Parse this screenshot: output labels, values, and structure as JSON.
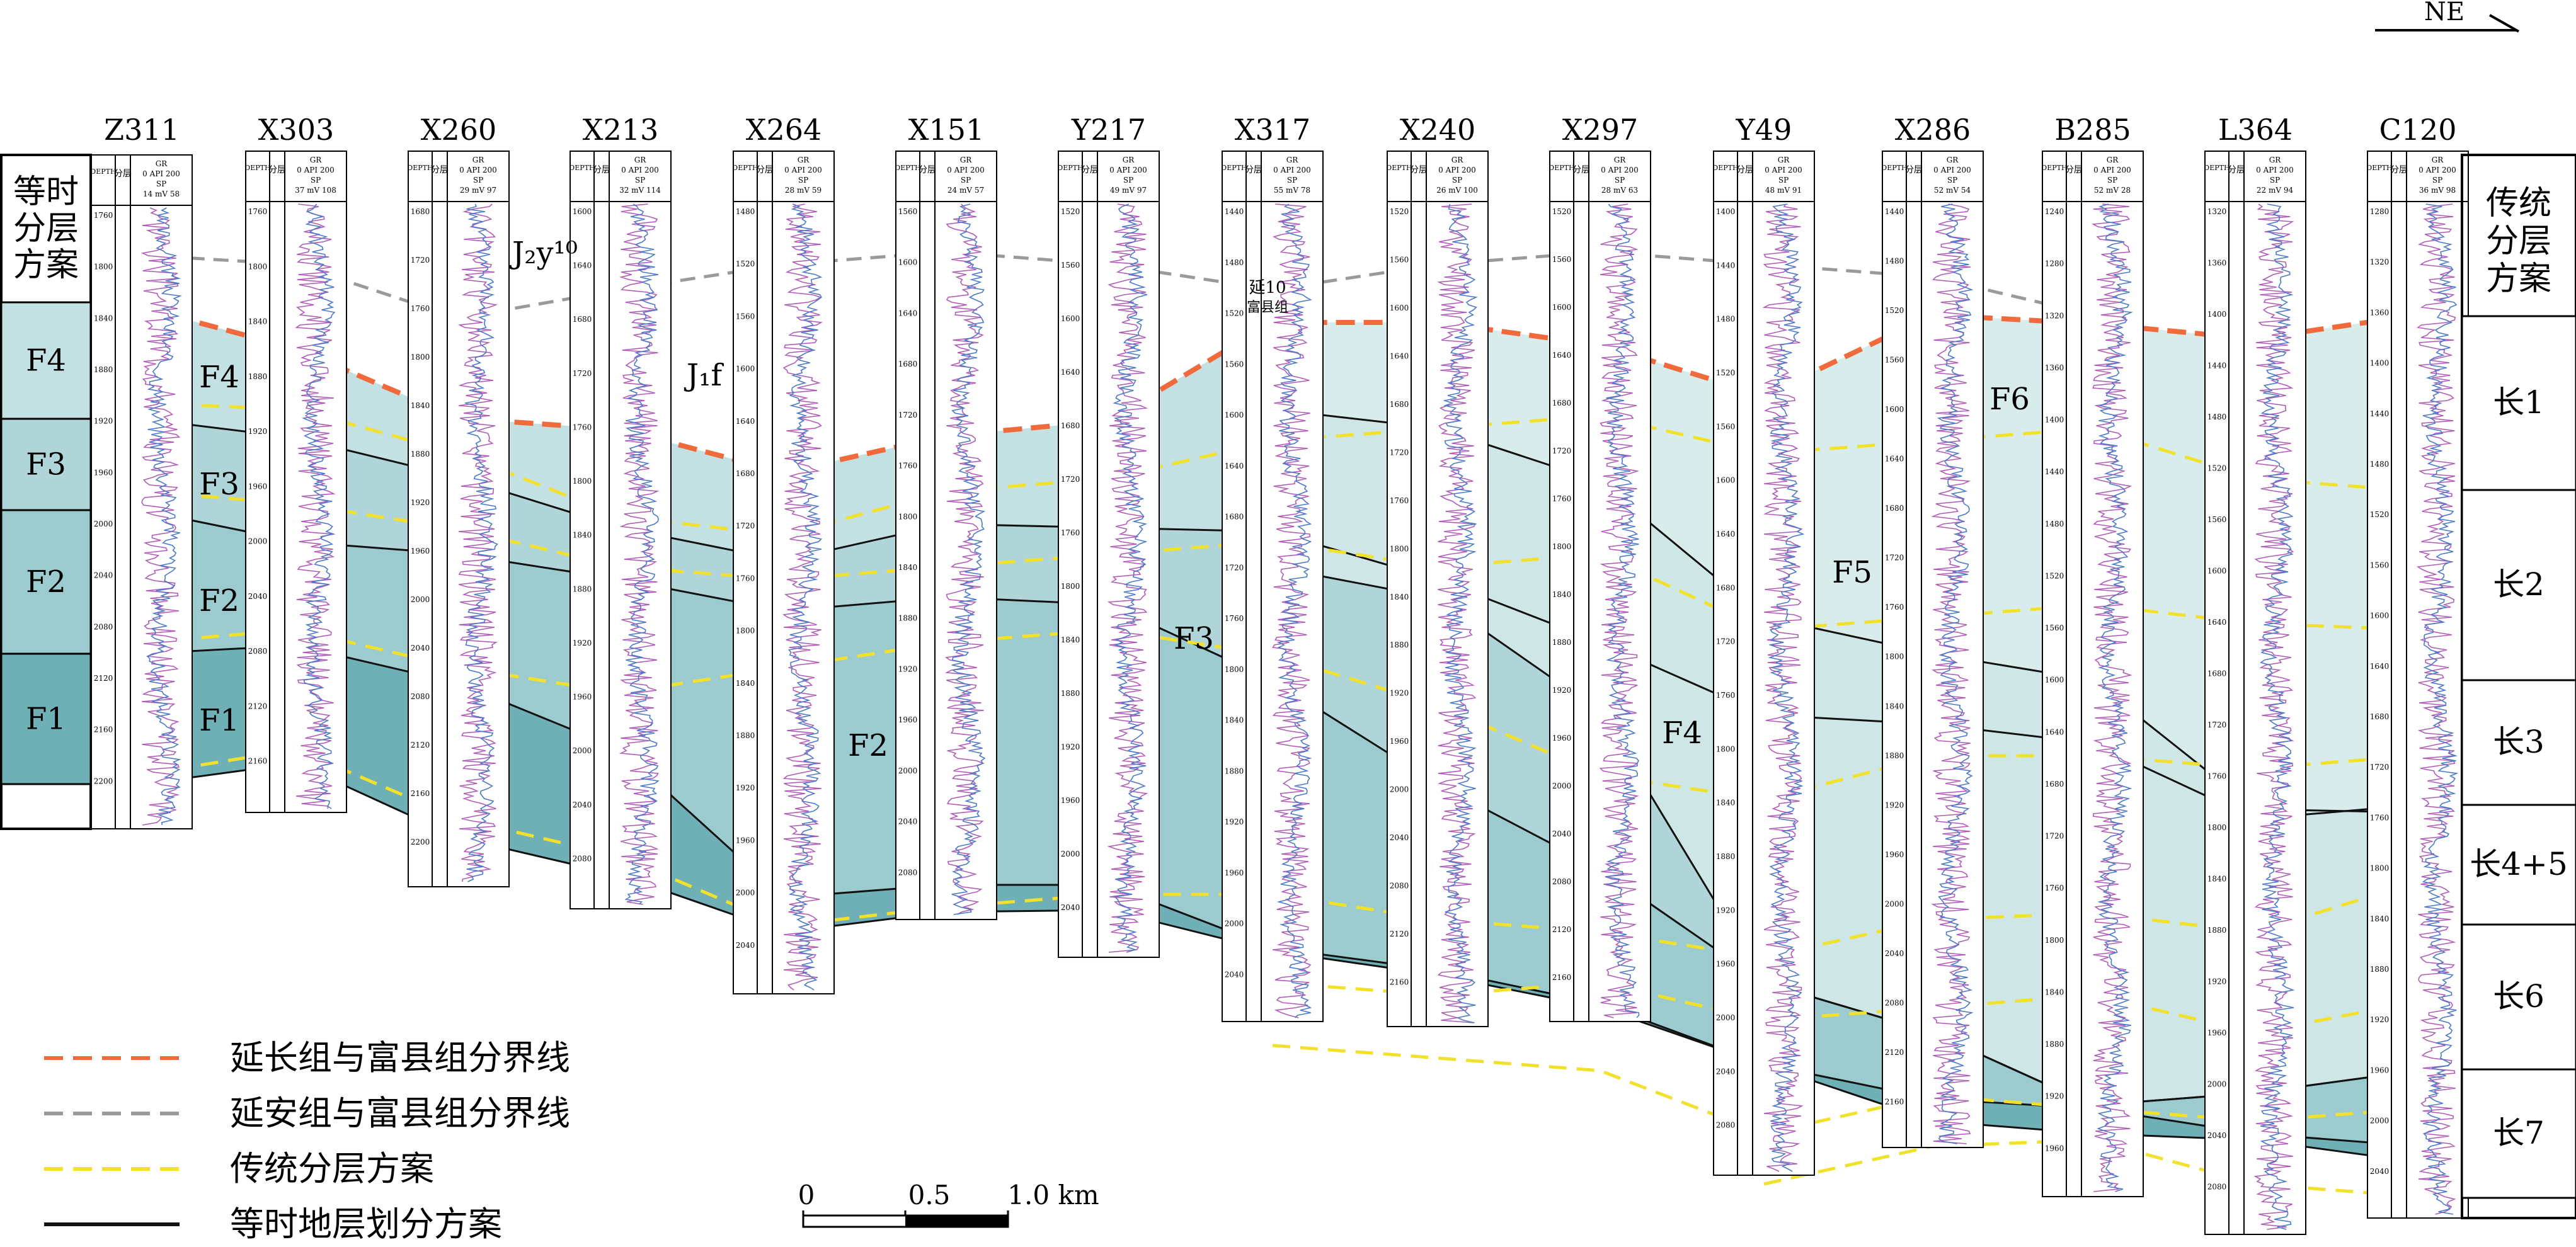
{
  "north_arrow": {
    "label": "NE"
  },
  "wells": [
    {
      "name": "Z311",
      "top_depth": "1760",
      "depth_ticks": [
        "1760",
        "1800",
        "1840",
        "1880",
        "1920",
        "1960",
        "2000",
        "2040",
        "2080",
        "2120",
        "2160",
        "2200"
      ],
      "curve_scale": [
        "GR",
        "0 API 200",
        "SP",
        "14 mV 58"
      ]
    },
    {
      "name": "X303",
      "top_depth": "1760",
      "depth_ticks": [
        "1760",
        "1800",
        "1840",
        "1880",
        "1920",
        "1960",
        "2000",
        "2040",
        "2080",
        "2120",
        "2160"
      ],
      "curve_scale": [
        "GR",
        "0 API 200",
        "SP",
        "37 mV 108"
      ]
    },
    {
      "name": "X260",
      "top_depth": "1680",
      "depth_ticks": [
        "1680",
        "1720",
        "1760",
        "1800",
        "1840",
        "1880",
        "1920",
        "1960",
        "2000",
        "2040",
        "2080",
        "2120",
        "2160",
        "2200"
      ],
      "curve_scale": [
        "GR",
        "0 API 200",
        "SP",
        "29 mV 97"
      ]
    },
    {
      "name": "X213",
      "top_depth": "1600",
      "depth_ticks": [
        "1600",
        "1640",
        "1680",
        "1720",
        "1760",
        "1800",
        "1840",
        "1880",
        "1920",
        "1960",
        "2000",
        "2040",
        "2080"
      ],
      "curve_scale": [
        "GR",
        "0 API 200",
        "SP",
        "32 mV 114"
      ]
    },
    {
      "name": "X264",
      "top_depth": "1480",
      "depth_ticks": [
        "1480",
        "1520",
        "1560",
        "1600",
        "1640",
        "1680",
        "1720",
        "1760",
        "1800",
        "1840",
        "1880",
        "1920",
        "1960",
        "2000",
        "2040"
      ],
      "curve_scale": [
        "GR",
        "0 API 200",
        "SP",
        "28 mV 59"
      ]
    },
    {
      "name": "X151",
      "top_depth": "1560",
      "depth_ticks": [
        "1560",
        "1600",
        "1640",
        "1680",
        "1720",
        "1760",
        "1800",
        "1840",
        "1880",
        "1920",
        "1960",
        "2000",
        "2040",
        "2080"
      ],
      "curve_scale": [
        "GR",
        "0 API 200",
        "SP",
        "24 mV 57"
      ]
    },
    {
      "name": "Y217",
      "top_depth": "1520",
      "depth_ticks": [
        "1520",
        "1560",
        "1600",
        "1640",
        "1680",
        "1720",
        "1760",
        "1800",
        "1840",
        "1880",
        "1920",
        "1960",
        "2000",
        "2040"
      ],
      "curve_scale": [
        "GR",
        "0 API 200",
        "SP",
        "49 mV 97"
      ]
    },
    {
      "name": "X317",
      "top_depth": "1440",
      "depth_ticks": [
        "1440",
        "1480",
        "1520",
        "1560",
        "1600",
        "1640",
        "1680",
        "1720",
        "1760",
        "1800",
        "1840",
        "1880",
        "1920",
        "1960",
        "2000",
        "2040"
      ],
      "curve_scale": [
        "GR",
        "0 API 200",
        "SP",
        "55 mV 78"
      ]
    },
    {
      "name": "X240",
      "top_depth": "1520",
      "depth_ticks": [
        "1520",
        "1560",
        "1600",
        "1640",
        "1680",
        "1720",
        "1760",
        "1800",
        "1840",
        "1880",
        "1920",
        "1960",
        "2000",
        "2040",
        "2080",
        "2120",
        "2160"
      ],
      "curve_scale": [
        "GR",
        "0 API 200",
        "SP",
        "26 mV 100"
      ]
    },
    {
      "name": "X297",
      "top_depth": "1520",
      "depth_ticks": [
        "1520",
        "1560",
        "1600",
        "1640",
        "1680",
        "1720",
        "1760",
        "1800",
        "1840",
        "1880",
        "1920",
        "1960",
        "2000",
        "2040",
        "2080",
        "2120",
        "2160"
      ],
      "curve_scale": [
        "GR",
        "0 API 200",
        "SP",
        "28 mV 63"
      ]
    },
    {
      "name": "Y49",
      "top_depth": "1400",
      "depth_ticks": [
        "1400",
        "1440",
        "1480",
        "1520",
        "1560",
        "1600",
        "1640",
        "1680",
        "1720",
        "1760",
        "1800",
        "1840",
        "1880",
        "1920",
        "1960",
        "2000",
        "2040",
        "2080"
      ],
      "curve_scale": [
        "GR",
        "0 API 200",
        "SP",
        "48 mV 91"
      ]
    },
    {
      "name": "X286",
      "top_depth": "1440",
      "depth_ticks": [
        "1440",
        "1480",
        "1520",
        "1560",
        "1600",
        "1640",
        "1680",
        "1720",
        "1760",
        "1800",
        "1840",
        "1880",
        "1920",
        "1960",
        "2000",
        "2040",
        "2080",
        "2120",
        "2160"
      ],
      "curve_scale": [
        "GR",
        "0 API 200",
        "SP",
        "52 mV 54"
      ]
    },
    {
      "name": "B285",
      "top_depth": "1240",
      "depth_ticks": [
        "1240",
        "1280",
        "1320",
        "1360",
        "1400",
        "1440",
        "1480",
        "1520",
        "1560",
        "1600",
        "1640",
        "1680",
        "1720",
        "1760",
        "1800",
        "1840",
        "1880",
        "1920",
        "1960"
      ],
      "curve_scale": [
        "GR",
        "0 API 200",
        "SP",
        "52 mV 28"
      ]
    },
    {
      "name": "L364",
      "top_depth": "1320",
      "depth_ticks": [
        "1320",
        "1360",
        "1400",
        "1440",
        "1480",
        "1520",
        "1560",
        "1600",
        "1640",
        "1680",
        "1720",
        "1760",
        "1800",
        "1840",
        "1880",
        "1920",
        "1960",
        "2000",
        "2040",
        "2080"
      ],
      "curve_scale": [
        "GR",
        "0 API 200",
        "SP",
        "22 mV 94"
      ]
    },
    {
      "name": "C120",
      "top_depth": "1280",
      "depth_ticks": [
        "1280",
        "1320",
        "1360",
        "1400",
        "1440",
        "1480",
        "1520",
        "1560",
        "1600",
        "1640",
        "1680",
        "1720",
        "1760",
        "1800",
        "1840",
        "1880",
        "1920",
        "1960",
        "2000",
        "2040"
      ],
      "curve_scale": [
        "GR",
        "0 API 200",
        "SP",
        "36 mV 98"
      ]
    }
  ],
  "track_headers": {
    "depth": "DEPTH",
    "layer": "分层"
  },
  "left_scheme": {
    "title": [
      "等时",
      "分层",
      "方案"
    ],
    "units": [
      "F4",
      "F3",
      "F2",
      "F1"
    ]
  },
  "right_scheme": {
    "title": [
      "传统",
      "分层",
      "方案"
    ],
    "units": [
      "长1",
      "长2",
      "长3",
      "长4+5",
      "长6",
      "长7"
    ]
  },
  "section_labels": {
    "unit_labels": [
      "F4",
      "F3",
      "F2",
      "F1",
      "F2",
      "F3",
      "F4",
      "F5",
      "F6"
    ],
    "formation_labels": [
      "J₂y¹⁰",
      "J₁f"
    ],
    "well_layer_texts": [
      "延10",
      "富县组"
    ]
  },
  "legend": [
    {
      "label": "延长组与富县组分界线",
      "color": "#f06a3c",
      "style": "dashed"
    },
    {
      "label": "延安组与富县组分界线",
      "color": "#9a9a9a",
      "style": "dashed"
    },
    {
      "label": "传统分层方案",
      "color": "#f2e12b",
      "style": "dashed"
    },
    {
      "label": "等时地层划分方案",
      "color": "#111111",
      "style": "solid"
    }
  ],
  "scale_bar": {
    "labels": [
      "0",
      "0.5",
      "1.0 km"
    ]
  },
  "colors": {
    "F6": "#d9ecec",
    "F5": "#cfe6e7",
    "F4": "#c3e0e2",
    "F3": "#afd5d8",
    "F2": "#9ccbcf",
    "F1": "#6fb0b6",
    "gr_curve": "#b05ab8",
    "sp_curve": "#4a78c8"
  }
}
